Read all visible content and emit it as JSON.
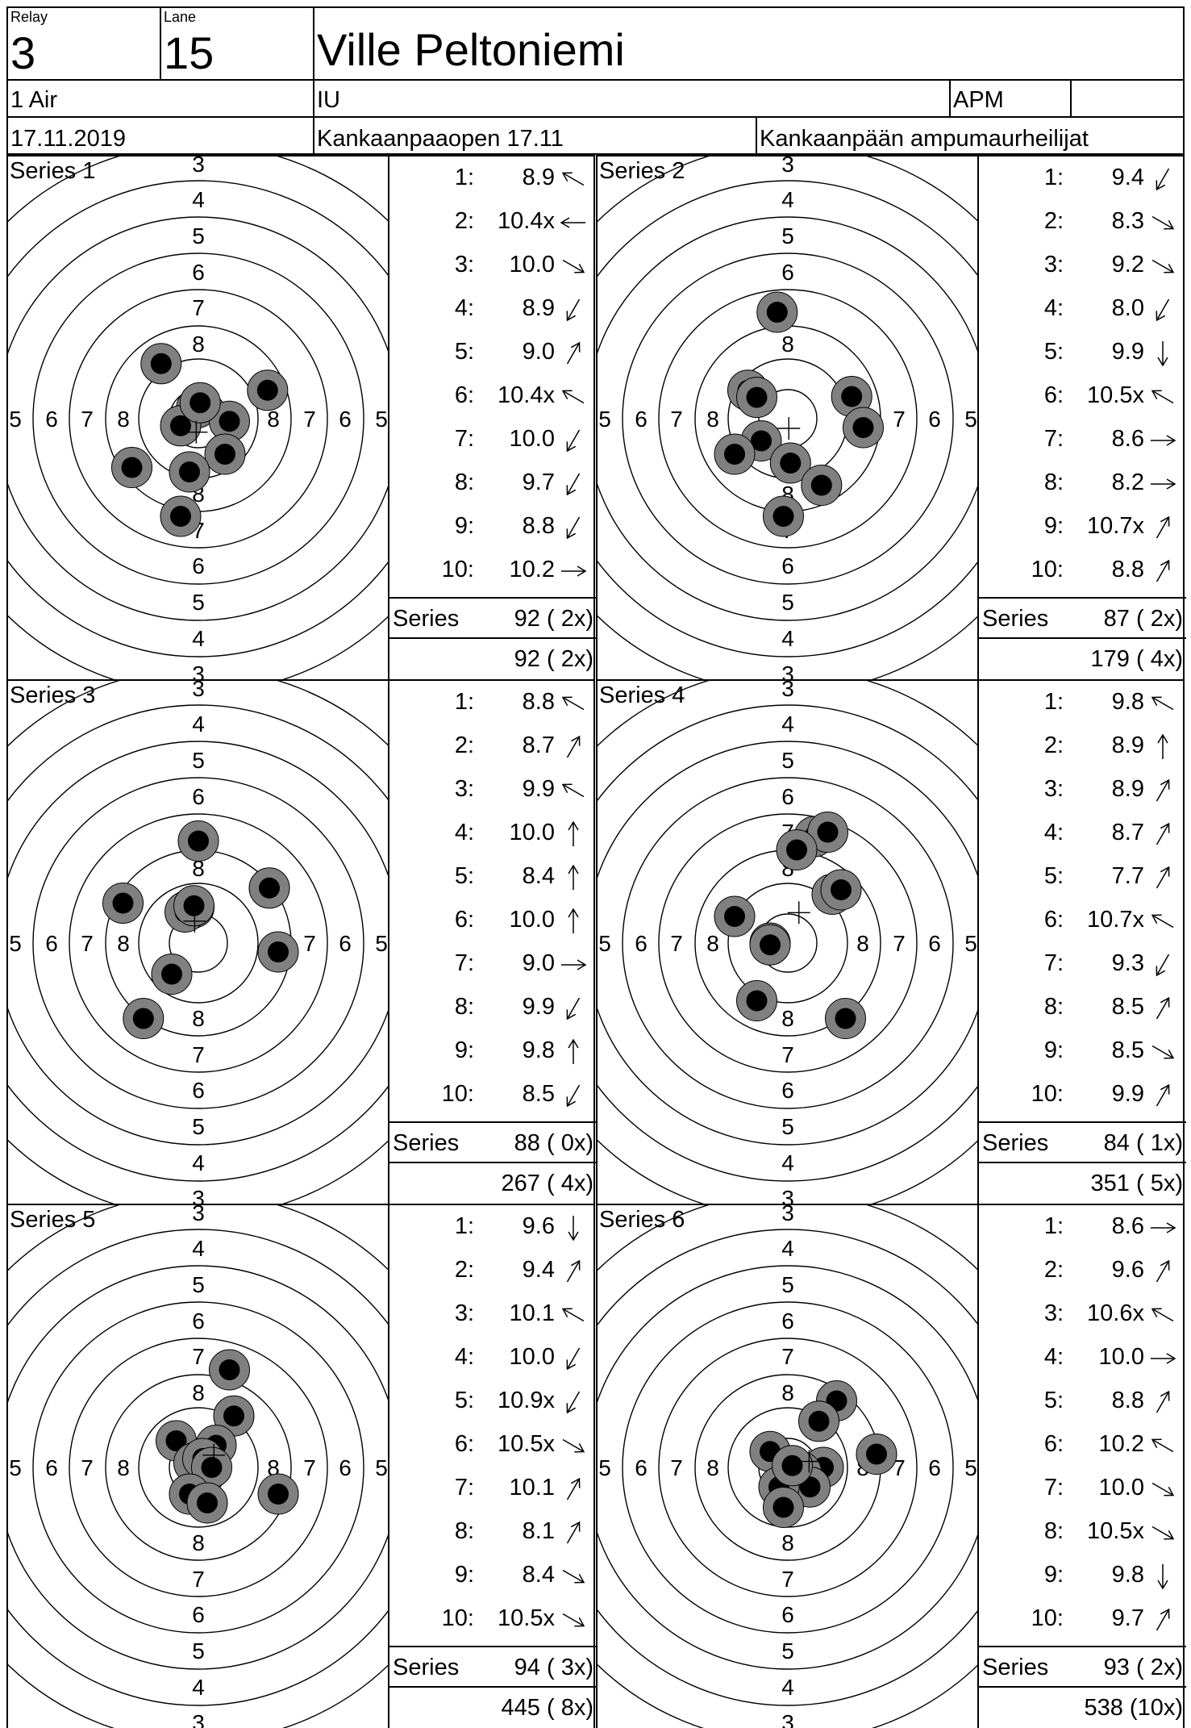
{
  "header": {
    "relay_label": "Relay",
    "relay_value": "3",
    "lane_label": "Lane",
    "lane_value": "15",
    "name": "Ville Peltoniemi",
    "event": "1 Air",
    "class": "IU",
    "club_abbr": "APM",
    "club_extra": "",
    "date": "17.11.2019",
    "competition": "Kankaanpaaopen 17.11",
    "club": "Kankaanpään ampumaurheilijat"
  },
  "ring_labels": [
    "3",
    "4",
    "5",
    "6",
    "7",
    "8"
  ],
  "series_word": "Series",
  "series": [
    {
      "title": "Series 1",
      "shots": [
        [
          "1:",
          "8.9",
          "up-left"
        ],
        [
          "2:",
          "10.4x",
          "left"
        ],
        [
          "3:",
          "10.0",
          "down-right"
        ],
        [
          "4:",
          "8.9",
          "down-left"
        ],
        [
          "5:",
          "9.0",
          "up-right"
        ],
        [
          "6:",
          "10.4x",
          "up-left"
        ],
        [
          "7:",
          "10.0",
          "down-left"
        ],
        [
          "8:",
          "9.7",
          "down-left"
        ],
        [
          "9:",
          "8.8",
          "down-left"
        ],
        [
          "10:",
          "10.2",
          "right"
        ]
      ],
      "hits": [
        [
          -0.42,
          0.62
        ],
        [
          0.78,
          0.32
        ],
        [
          -0.02,
          0.12
        ],
        [
          0.35,
          -0.03
        ],
        [
          -0.2,
          -0.08
        ],
        [
          -0.75,
          -0.55
        ],
        [
          0.3,
          -0.4
        ],
        [
          -0.1,
          -0.6
        ],
        [
          -0.2,
          -1.1
        ],
        [
          0.02,
          0.18
        ]
      ],
      "series_total": "92 ( 2x)",
      "cumulative": "92 ( 2x)"
    },
    {
      "title": "Series 2",
      "shots": [
        [
          "1:",
          "9.4",
          "down-left"
        ],
        [
          "2:",
          "8.3",
          "down-right"
        ],
        [
          "3:",
          "9.2",
          "down-right"
        ],
        [
          "4:",
          "8.0",
          "down-left"
        ],
        [
          "5:",
          "9.9",
          "down"
        ],
        [
          "6:",
          "10.5x",
          "up-left"
        ],
        [
          "7:",
          "8.6",
          "right"
        ],
        [
          "8:",
          "8.2",
          "right"
        ],
        [
          "9:",
          "10.7x",
          "up-right"
        ],
        [
          "10:",
          "8.8",
          "up-right"
        ]
      ],
      "hits": [
        [
          -0.12,
          1.2
        ],
        [
          -0.45,
          0.32
        ],
        [
          -0.35,
          0.24
        ],
        [
          0.72,
          0.25
        ],
        [
          0.85,
          -0.1
        ],
        [
          -0.3,
          -0.25
        ],
        [
          -0.6,
          -0.4
        ],
        [
          0.03,
          -0.5
        ],
        [
          0.38,
          -0.75
        ],
        [
          -0.05,
          -1.1
        ]
      ],
      "series_total": "87 ( 2x)",
      "cumulative": "179 ( 4x)"
    },
    {
      "title": "Series 3",
      "shots": [
        [
          "1:",
          "8.8",
          "up-left"
        ],
        [
          "2:",
          "8.7",
          "up-right"
        ],
        [
          "3:",
          "9.9",
          "up-left"
        ],
        [
          "4:",
          "10.0",
          "up"
        ],
        [
          "5:",
          "8.4",
          "up"
        ],
        [
          "6:",
          "10.0",
          "up"
        ],
        [
          "7:",
          "9.0",
          "right"
        ],
        [
          "8:",
          "9.9",
          "down-left"
        ],
        [
          "9:",
          "9.8",
          "up"
        ],
        [
          "10:",
          "8.5",
          "down-left"
        ]
      ],
      "hits": [
        [
          0.0,
          1.15
        ],
        [
          -0.85,
          0.45
        ],
        [
          -0.1,
          0.38
        ],
        [
          0.8,
          0.62
        ],
        [
          -0.05,
          0.4
        ],
        [
          -0.15,
          0.35
        ],
        [
          0.9,
          -0.1
        ],
        [
          -0.3,
          -0.35
        ],
        [
          -0.62,
          -0.85
        ],
        [
          -0.05,
          0.42
        ]
      ],
      "series_total": "88 ( 0x)",
      "cumulative": "267 ( 4x)"
    },
    {
      "title": "Series 4",
      "shots": [
        [
          "1:",
          "9.8",
          "up-left"
        ],
        [
          "2:",
          "8.9",
          "up"
        ],
        [
          "3:",
          "8.9",
          "up-right"
        ],
        [
          "4:",
          "8.7",
          "up-right"
        ],
        [
          "5:",
          "7.7",
          "up-right"
        ],
        [
          "6:",
          "10.7x",
          "up-left"
        ],
        [
          "7:",
          "9.3",
          "down-left"
        ],
        [
          "8:",
          "8.5",
          "up-right"
        ],
        [
          "9:",
          "8.5",
          "down-right"
        ],
        [
          "10:",
          "9.9",
          "up-right"
        ]
      ],
      "hits": [
        [
          0.3,
          1.2
        ],
        [
          0.45,
          1.25
        ],
        [
          0.1,
          1.05
        ],
        [
          0.5,
          0.55
        ],
        [
          0.6,
          0.6
        ],
        [
          -0.2,
          0.0
        ],
        [
          -0.6,
          0.3
        ],
        [
          -0.2,
          -0.02
        ],
        [
          -0.35,
          -0.65
        ],
        [
          0.65,
          -0.85
        ]
      ],
      "series_total": "84 ( 1x)",
      "cumulative": "351 ( 5x)"
    },
    {
      "title": "Series 5",
      "shots": [
        [
          "1:",
          "9.6",
          "down"
        ],
        [
          "2:",
          "9.4",
          "up-right"
        ],
        [
          "3:",
          "10.1",
          "up-left"
        ],
        [
          "4:",
          "10.0",
          "down-left"
        ],
        [
          "5:",
          "10.9x",
          "down-left"
        ],
        [
          "6:",
          "10.5x",
          "down-right"
        ],
        [
          "7:",
          "10.1",
          "up-right"
        ],
        [
          "8:",
          "8.1",
          "up-right"
        ],
        [
          "9:",
          "8.4",
          "down-right"
        ],
        [
          "10:",
          "10.5x",
          "down-right"
        ]
      ],
      "hits": [
        [
          0.35,
          1.1
        ],
        [
          0.4,
          0.58
        ],
        [
          -0.25,
          0.3
        ],
        [
          0.2,
          0.25
        ],
        [
          -0.05,
          0.05
        ],
        [
          0.05,
          0.1
        ],
        [
          0.15,
          0.0
        ],
        [
          0.9,
          -0.3
        ],
        [
          -0.1,
          -0.3
        ],
        [
          0.1,
          -0.4
        ]
      ],
      "series_total": "94 ( 3x)",
      "cumulative": "445 ( 8x)"
    },
    {
      "title": "Series 6",
      "shots": [
        [
          "1:",
          "8.6",
          "right"
        ],
        [
          "2:",
          "9.6",
          "up-right"
        ],
        [
          "3:",
          "10.6x",
          "up-left"
        ],
        [
          "4:",
          "10.0",
          "right"
        ],
        [
          "5:",
          "8.8",
          "up-right"
        ],
        [
          "6:",
          "10.2",
          "up-left"
        ],
        [
          "7:",
          "10.0",
          "down-right"
        ],
        [
          "8:",
          "10.5x",
          "down-right"
        ],
        [
          "9:",
          "9.8",
          "down"
        ],
        [
          "10:",
          "9.7",
          "up-right"
        ]
      ],
      "hits": [
        [
          0.55,
          0.75
        ],
        [
          0.35,
          0.52
        ],
        [
          -0.2,
          0.18
        ],
        [
          1.0,
          0.15
        ],
        [
          0.4,
          0.0
        ],
        [
          0.15,
          -0.05
        ],
        [
          0.25,
          -0.22
        ],
        [
          -0.1,
          -0.22
        ],
        [
          0.05,
          0.02
        ],
        [
          -0.05,
          -0.45
        ]
      ],
      "series_total": "93 ( 2x)",
      "cumulative": "538 (10x)"
    }
  ]
}
